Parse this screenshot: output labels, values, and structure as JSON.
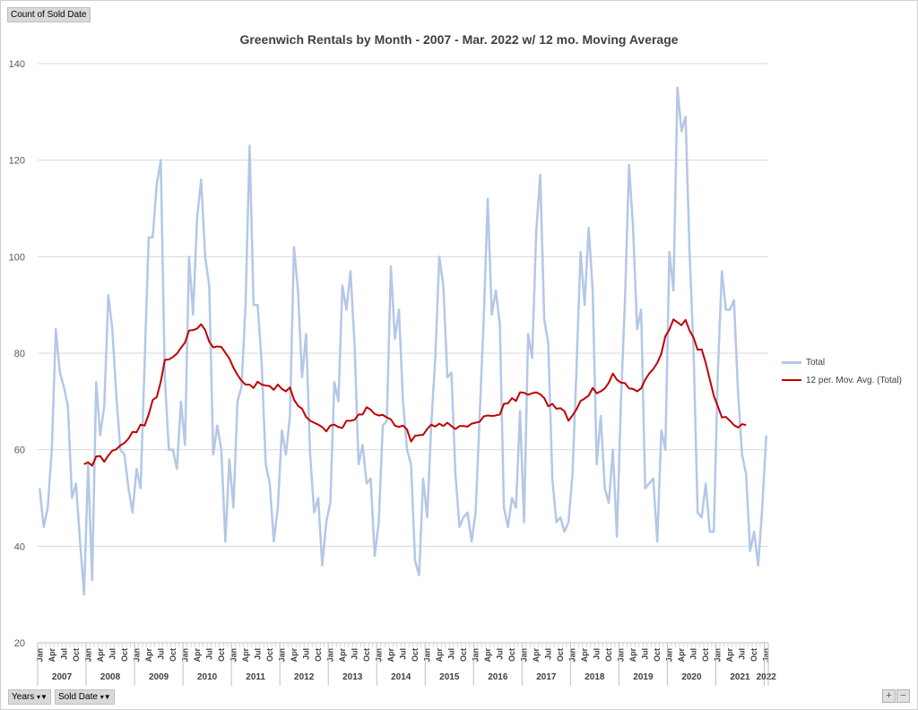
{
  "buttons": {
    "value_field": "Count of Sold Date",
    "years_filter": "Years",
    "sold_date_filter": "Sold Date",
    "zoom_in": "+",
    "zoom_out": "−"
  },
  "icons": {
    "dropdown": "dropdown-filter-icon"
  },
  "chart_data": {
    "type": "line",
    "title": "Greenwich Rentals by Month - 2007 - Mar. 2022 w/ 12 mo. Moving Average",
    "xlabel": "",
    "ylabel": "",
    "ylim": [
      20,
      140
    ],
    "yticks": [
      20,
      40,
      60,
      80,
      100,
      120,
      140
    ],
    "grid": true,
    "legend_position": "right",
    "month_ticks": [
      "Jan",
      "Apr",
      "Jul",
      "Oct"
    ],
    "years": [
      "2007",
      "2008",
      "2009",
      "2010",
      "2011",
      "2012",
      "2013",
      "2014",
      "2015",
      "2016",
      "2017",
      "2018",
      "2019",
      "2020",
      "2021",
      "2022"
    ],
    "series": [
      {
        "name": "Total",
        "color": "#b4c7e7",
        "values": [
          52,
          44,
          48,
          60,
          85,
          76,
          73,
          69,
          50,
          53,
          41,
          30,
          57,
          33,
          74,
          63,
          69,
          92,
          85,
          71,
          60,
          59,
          52,
          47,
          56,
          52,
          78,
          104,
          104,
          115,
          120,
          75,
          60,
          60,
          56,
          70,
          61,
          100,
          88,
          108,
          116,
          100,
          94,
          59,
          65,
          60,
          41,
          58,
          48,
          70,
          73,
          90,
          123,
          90,
          90,
          78,
          57,
          53,
          41,
          48,
          64,
          59,
          67,
          102,
          93,
          75,
          84,
          59,
          47,
          50,
          36,
          45,
          49,
          74,
          70,
          94,
          89,
          97,
          82,
          57,
          61,
          53,
          54,
          38,
          45,
          65,
          66,
          98,
          83,
          89,
          70,
          60,
          57,
          37,
          34,
          54,
          46,
          65,
          79,
          100,
          94,
          75,
          76,
          55,
          44,
          46,
          47,
          41,
          47,
          67,
          87,
          112,
          88,
          93,
          86,
          48,
          44,
          50,
          48,
          68,
          45,
          84,
          79,
          105,
          117,
          87,
          82,
          54,
          45,
          46,
          43,
          45,
          55,
          77,
          101,
          90,
          106,
          93,
          57,
          67,
          52,
          49,
          60,
          42,
          70,
          91,
          119,
          106,
          85,
          89,
          52,
          53,
          54,
          41,
          64,
          60,
          101,
          93,
          135,
          126,
          129,
          101,
          80,
          47,
          46,
          53,
          43,
          43,
          76,
          97,
          89,
          89,
          91,
          72,
          59,
          55,
          39,
          43,
          36,
          48,
          63
        ]
      },
      {
        "name": "12 per. Mov. Avg. (Total)",
        "color": "#c00000",
        "values": [
          null,
          null,
          null,
          null,
          null,
          null,
          null,
          null,
          null,
          null,
          null,
          57,
          57.4,
          56.7,
          58.6,
          58.7,
          57.5,
          58.8,
          59.8,
          60.1,
          60.9,
          61.4,
          62.3,
          63.7,
          63.6,
          65.2,
          65.0,
          67.3,
          70.3,
          70.9,
          74.1,
          78.6,
          78.7,
          79.2,
          79.9,
          81.1,
          82.2,
          84.7,
          84.8,
          85.1,
          86.0,
          84.8,
          82.4,
          81.2,
          81.4,
          81.3,
          80.1,
          78.9,
          77.0,
          75.5,
          74.3,
          73.5,
          73.5,
          72.8,
          74.1,
          73.5,
          73.3,
          73.2,
          72.4,
          73.5,
          72.6,
          72.1,
          72.9,
          70.4,
          69.1,
          68.5,
          66.8,
          66.0,
          65.6,
          65.2,
          64.7,
          63.8,
          65.0,
          65.2,
          64.7,
          64.5,
          66.0,
          66.0,
          66.2,
          67.3,
          67.3,
          68.8,
          68.3,
          67.4,
          67.1,
          67.2,
          66.7,
          66.3,
          65.0,
          64.7,
          65.0,
          64.2,
          61.7,
          62.9,
          63.0,
          63.1,
          64.3,
          65.2,
          64.8,
          65.4,
          64.9,
          65.6,
          64.9,
          64.3,
          64.9,
          64.9,
          64.8,
          65.4,
          65.6,
          65.8,
          66.9,
          67.1,
          67.0,
          67.1,
          67.3,
          69.5,
          69.6,
          70.7,
          70.1,
          71.9,
          71.8,
          71.4,
          71.7,
          71.9,
          71.5,
          70.7,
          69.0,
          69.5,
          68.5,
          68.6,
          68.0,
          66.0,
          67.1,
          68.4,
          70.1,
          70.6,
          71.2,
          72.8,
          71.7,
          72.1,
          72.7,
          73.9,
          75.8,
          74.5,
          73.9,
          73.8,
          72.7,
          72.6,
          72.1,
          72.7,
          74.5,
          75.8,
          76.7,
          78.0,
          79.9,
          83.5,
          84.9,
          87.0,
          86.4,
          85.8,
          86.9,
          84.7,
          83.2,
          80.7,
          80.8,
          78.0,
          74.6,
          71.2,
          69.0,
          66.7,
          66.8,
          66.0,
          65.1,
          64.6,
          65.3,
          65.1
        ]
      }
    ]
  }
}
